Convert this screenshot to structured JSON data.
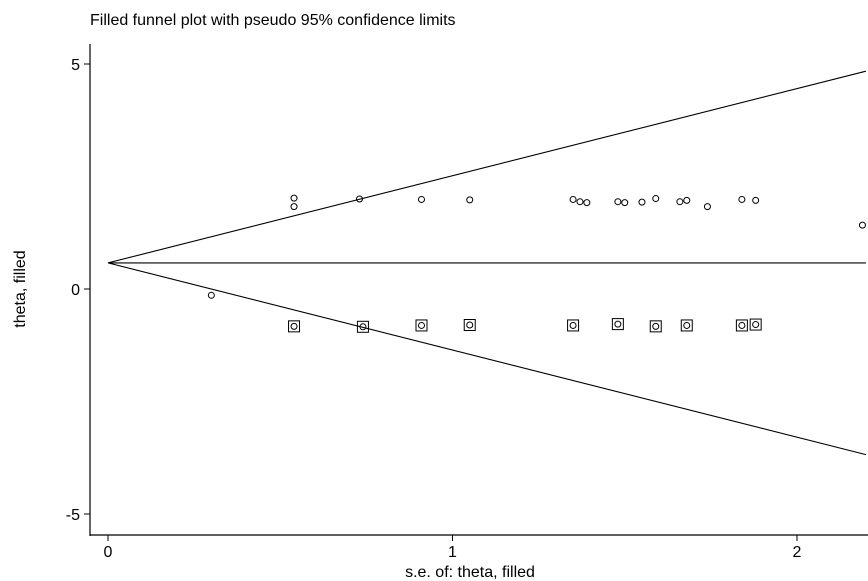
{
  "chart_data": {
    "type": "scatter",
    "title": "Filled funnel plot with pseudo 95% confidence limits",
    "xlabel": "s.e. of: theta, filled",
    "ylabel": "theta, filled",
    "xlim": [
      0,
      2.2
    ],
    "ylim": [
      -5.5,
      5.5
    ],
    "x_ticks": [
      {
        "value": 0,
        "label": "0"
      },
      {
        "value": 1,
        "label": "1"
      },
      {
        "value": 2,
        "label": "2"
      }
    ],
    "y_ticks": [
      {
        "value": -5,
        "label": "-5"
      },
      {
        "value": 0,
        "label": "0"
      },
      {
        "value": 5,
        "label": "5"
      }
    ],
    "grid": false,
    "pooled_estimate": 0.58,
    "funnel_limits": [
      {
        "x": [
          0,
          2.2
        ],
        "y": [
          0.58,
          4.84
        ]
      },
      {
        "x": [
          0,
          2.2
        ],
        "y": [
          0.58,
          -3.68
        ]
      }
    ],
    "series": [
      {
        "marker": "circle",
        "points": [
          [
            0.3,
            -0.14
          ],
          [
            0.54,
            2.02
          ],
          [
            0.54,
            1.83
          ],
          [
            0.73,
            2.0
          ],
          [
            0.91,
            1.99
          ],
          [
            1.05,
            1.98
          ],
          [
            1.35,
            1.99
          ],
          [
            1.37,
            1.94
          ],
          [
            1.39,
            1.92
          ],
          [
            1.48,
            1.94
          ],
          [
            1.5,
            1.92
          ],
          [
            1.55,
            1.93
          ],
          [
            1.59,
            2.01
          ],
          [
            1.66,
            1.94
          ],
          [
            1.68,
            1.97
          ],
          [
            1.74,
            1.83
          ],
          [
            1.84,
            1.99
          ],
          [
            1.88,
            1.97
          ],
          [
            2.19,
            1.42
          ]
        ]
      },
      {
        "marker": "square-circle",
        "points": [
          [
            0.54,
            -0.83
          ],
          [
            0.74,
            -0.84
          ],
          [
            0.91,
            -0.81
          ],
          [
            1.05,
            -0.8
          ],
          [
            1.35,
            -0.81
          ],
          [
            1.48,
            -0.78
          ],
          [
            1.59,
            -0.83
          ],
          [
            1.68,
            -0.81
          ],
          [
            1.84,
            -0.81
          ],
          [
            1.88,
            -0.79
          ]
        ]
      }
    ]
  }
}
